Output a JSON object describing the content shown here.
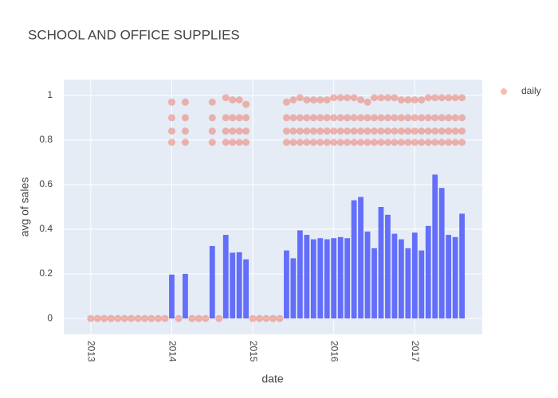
{
  "chart_data": {
    "type": "bar",
    "title": "SCHOOL AND OFFICE SUPPLIES",
    "x_label": "date",
    "y_label": "avg of sales",
    "xlim": [
      "2012-09",
      "2017-11"
    ],
    "xticks": [
      {
        "value": "2013-01",
        "label": "2013"
      },
      {
        "value": "2014-01",
        "label": "2014"
      },
      {
        "value": "2015-01",
        "label": "2015"
      },
      {
        "value": "2016-01",
        "label": "2016"
      },
      {
        "value": "2017-01",
        "label": "2017"
      }
    ],
    "ylim": [
      -0.071,
      1.071
    ],
    "yticks": [
      0,
      0.2,
      0.4,
      0.6,
      0.8,
      1
    ],
    "grid": true,
    "legend": "top-right",
    "series": [
      {
        "type": "bar",
        "color": "#636efa",
        "x": [
          "2014-01",
          "2014-03",
          "2014-07",
          "2014-09",
          "2014-10",
          "2014-11",
          "2014-12",
          "2015-06",
          "2015-07",
          "2015-08",
          "2015-09",
          "2015-10",
          "2015-11",
          "2015-12",
          "2016-01",
          "2016-02",
          "2016-03",
          "2016-04",
          "2016-05",
          "2016-06",
          "2016-07",
          "2016-08",
          "2016-09",
          "2016-10",
          "2016-11",
          "2016-12",
          "2017-01",
          "2017-02",
          "2017-03",
          "2017-04",
          "2017-05",
          "2017-06",
          "2017-07",
          "2017-08"
        ],
        "values": [
          0.197,
          0.2,
          0.325,
          0.375,
          0.295,
          0.297,
          0.265,
          0.305,
          0.27,
          0.395,
          0.375,
          0.355,
          0.36,
          0.355,
          0.36,
          0.365,
          0.36,
          0.53,
          0.545,
          0.39,
          0.315,
          0.5,
          0.465,
          0.38,
          0.355,
          0.315,
          0.385,
          0.305,
          0.415,
          0.645,
          0.585,
          0.375,
          0.365,
          0.47
        ]
      },
      {
        "type": "scatter",
        "name": "daily",
        "color": "#ef553b",
        "opacity": 0.4,
        "x": [
          "2013-01",
          "2013-02",
          "2013-03",
          "2013-04",
          "2013-05",
          "2013-06",
          "2013-07",
          "2013-08",
          "2013-09",
          "2013-10",
          "2013-11",
          "2013-12",
          "2014-02",
          "2014-04",
          "2014-05",
          "2014-06",
          "2014-08",
          "2015-01",
          "2015-02",
          "2015-03",
          "2015-04",
          "2015-05",
          "2014-01",
          "2014-01",
          "2014-01",
          "2014-01",
          "2014-03",
          "2014-03",
          "2014-03",
          "2014-03",
          "2014-07",
          "2014-07",
          "2014-07",
          "2014-07",
          "2014-09",
          "2014-09",
          "2014-09",
          "2014-09",
          "2014-10",
          "2014-10",
          "2014-10",
          "2014-10",
          "2014-11",
          "2014-11",
          "2014-11",
          "2014-11",
          "2014-12",
          "2014-12",
          "2014-12",
          "2014-12",
          "2015-06",
          "2015-06",
          "2015-06",
          "2015-06",
          "2015-07",
          "2015-07",
          "2015-07",
          "2015-07",
          "2015-08",
          "2015-08",
          "2015-08",
          "2015-08",
          "2015-09",
          "2015-09",
          "2015-09",
          "2015-09",
          "2015-10",
          "2015-10",
          "2015-10",
          "2015-10",
          "2015-11",
          "2015-11",
          "2015-11",
          "2015-11",
          "2015-12",
          "2015-12",
          "2015-12",
          "2015-12",
          "2016-01",
          "2016-01",
          "2016-01",
          "2016-01",
          "2016-02",
          "2016-02",
          "2016-02",
          "2016-02",
          "2016-03",
          "2016-03",
          "2016-03",
          "2016-03",
          "2016-04",
          "2016-04",
          "2016-04",
          "2016-04",
          "2016-05",
          "2016-05",
          "2016-05",
          "2016-05",
          "2016-06",
          "2016-06",
          "2016-06",
          "2016-06",
          "2016-07",
          "2016-07",
          "2016-07",
          "2016-07",
          "2016-08",
          "2016-08",
          "2016-08",
          "2016-08",
          "2016-09",
          "2016-09",
          "2016-09",
          "2016-09",
          "2016-10",
          "2016-10",
          "2016-10",
          "2016-10",
          "2016-11",
          "2016-11",
          "2016-11",
          "2016-11",
          "2016-12",
          "2016-12",
          "2016-12",
          "2016-12",
          "2017-01",
          "2017-01",
          "2017-01",
          "2017-01",
          "2017-02",
          "2017-02",
          "2017-02",
          "2017-02",
          "2017-03",
          "2017-03",
          "2017-03",
          "2017-03",
          "2017-04",
          "2017-04",
          "2017-04",
          "2017-04",
          "2017-05",
          "2017-05",
          "2017-05",
          "2017-05",
          "2017-06",
          "2017-06",
          "2017-06",
          "2017-06",
          "2017-07",
          "2017-07",
          "2017-07",
          "2017-07",
          "2017-08",
          "2017-08",
          "2017-08",
          "2017-08"
        ],
        "values": [
          0,
          0,
          0,
          0,
          0,
          0,
          0,
          0,
          0,
          0,
          0,
          0,
          0,
          0,
          0,
          0,
          0,
          0,
          0,
          0,
          0,
          0,
          0.79,
          0.84,
          0.9,
          0.97,
          0.79,
          0.84,
          0.9,
          0.97,
          0.79,
          0.84,
          0.9,
          0.97,
          0.79,
          0.84,
          0.9,
          0.99,
          0.79,
          0.84,
          0.9,
          0.98,
          0.79,
          0.84,
          0.9,
          0.98,
          0.79,
          0.84,
          0.9,
          0.96,
          0.79,
          0.84,
          0.9,
          0.97,
          0.79,
          0.84,
          0.9,
          0.98,
          0.79,
          0.84,
          0.9,
          0.99,
          0.79,
          0.84,
          0.9,
          0.98,
          0.79,
          0.84,
          0.9,
          0.98,
          0.79,
          0.84,
          0.9,
          0.98,
          0.79,
          0.84,
          0.9,
          0.98,
          0.79,
          0.84,
          0.9,
          0.99,
          0.79,
          0.84,
          0.9,
          0.99,
          0.79,
          0.84,
          0.9,
          0.99,
          0.79,
          0.84,
          0.9,
          0.99,
          0.79,
          0.84,
          0.9,
          0.98,
          0.79,
          0.84,
          0.9,
          0.97,
          0.79,
          0.84,
          0.9,
          0.99,
          0.79,
          0.84,
          0.9,
          0.99,
          0.79,
          0.84,
          0.9,
          0.99,
          0.79,
          0.84,
          0.9,
          0.99,
          0.79,
          0.84,
          0.9,
          0.98,
          0.79,
          0.84,
          0.9,
          0.98,
          0.79,
          0.84,
          0.9,
          0.98,
          0.79,
          0.84,
          0.9,
          0.98,
          0.79,
          0.84,
          0.9,
          0.99,
          0.79,
          0.84,
          0.9,
          0.99,
          0.79,
          0.84,
          0.9,
          0.99,
          0.79,
          0.84,
          0.9,
          0.99,
          0.79,
          0.84,
          0.9,
          0.99,
          0.79,
          0.84,
          0.9,
          0.99
        ]
      }
    ]
  }
}
